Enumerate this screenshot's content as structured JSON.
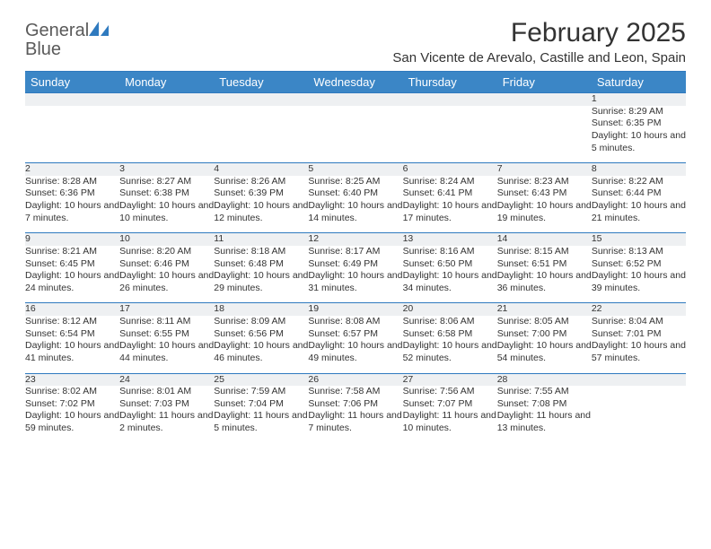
{
  "logo": {
    "text_general": "General",
    "text_blue": "Blue"
  },
  "title": "February 2025",
  "location": "San Vicente de Arevalo, Castille and Leon, Spain",
  "colors": {
    "header_bg": "#3b86c6",
    "border": "#2f7abf",
    "daynum_bg": "#eef0f2",
    "text": "#333333"
  },
  "day_headers": [
    "Sunday",
    "Monday",
    "Tuesday",
    "Wednesday",
    "Thursday",
    "Friday",
    "Saturday"
  ],
  "weeks": [
    [
      null,
      null,
      null,
      null,
      null,
      null,
      {
        "n": "1",
        "sunrise": "8:29 AM",
        "sunset": "6:35 PM",
        "daylight": "10 hours and 5 minutes."
      }
    ],
    [
      {
        "n": "2",
        "sunrise": "8:28 AM",
        "sunset": "6:36 PM",
        "daylight": "10 hours and 7 minutes."
      },
      {
        "n": "3",
        "sunrise": "8:27 AM",
        "sunset": "6:38 PM",
        "daylight": "10 hours and 10 minutes."
      },
      {
        "n": "4",
        "sunrise": "8:26 AM",
        "sunset": "6:39 PM",
        "daylight": "10 hours and 12 minutes."
      },
      {
        "n": "5",
        "sunrise": "8:25 AM",
        "sunset": "6:40 PM",
        "daylight": "10 hours and 14 minutes."
      },
      {
        "n": "6",
        "sunrise": "8:24 AM",
        "sunset": "6:41 PM",
        "daylight": "10 hours and 17 minutes."
      },
      {
        "n": "7",
        "sunrise": "8:23 AM",
        "sunset": "6:43 PM",
        "daylight": "10 hours and 19 minutes."
      },
      {
        "n": "8",
        "sunrise": "8:22 AM",
        "sunset": "6:44 PM",
        "daylight": "10 hours and 21 minutes."
      }
    ],
    [
      {
        "n": "9",
        "sunrise": "8:21 AM",
        "sunset": "6:45 PM",
        "daylight": "10 hours and 24 minutes."
      },
      {
        "n": "10",
        "sunrise": "8:20 AM",
        "sunset": "6:46 PM",
        "daylight": "10 hours and 26 minutes."
      },
      {
        "n": "11",
        "sunrise": "8:18 AM",
        "sunset": "6:48 PM",
        "daylight": "10 hours and 29 minutes."
      },
      {
        "n": "12",
        "sunrise": "8:17 AM",
        "sunset": "6:49 PM",
        "daylight": "10 hours and 31 minutes."
      },
      {
        "n": "13",
        "sunrise": "8:16 AM",
        "sunset": "6:50 PM",
        "daylight": "10 hours and 34 minutes."
      },
      {
        "n": "14",
        "sunrise": "8:15 AM",
        "sunset": "6:51 PM",
        "daylight": "10 hours and 36 minutes."
      },
      {
        "n": "15",
        "sunrise": "8:13 AM",
        "sunset": "6:52 PM",
        "daylight": "10 hours and 39 minutes."
      }
    ],
    [
      {
        "n": "16",
        "sunrise": "8:12 AM",
        "sunset": "6:54 PM",
        "daylight": "10 hours and 41 minutes."
      },
      {
        "n": "17",
        "sunrise": "8:11 AM",
        "sunset": "6:55 PM",
        "daylight": "10 hours and 44 minutes."
      },
      {
        "n": "18",
        "sunrise": "8:09 AM",
        "sunset": "6:56 PM",
        "daylight": "10 hours and 46 minutes."
      },
      {
        "n": "19",
        "sunrise": "8:08 AM",
        "sunset": "6:57 PM",
        "daylight": "10 hours and 49 minutes."
      },
      {
        "n": "20",
        "sunrise": "8:06 AM",
        "sunset": "6:58 PM",
        "daylight": "10 hours and 52 minutes."
      },
      {
        "n": "21",
        "sunrise": "8:05 AM",
        "sunset": "7:00 PM",
        "daylight": "10 hours and 54 minutes."
      },
      {
        "n": "22",
        "sunrise": "8:04 AM",
        "sunset": "7:01 PM",
        "daylight": "10 hours and 57 minutes."
      }
    ],
    [
      {
        "n": "23",
        "sunrise": "8:02 AM",
        "sunset": "7:02 PM",
        "daylight": "10 hours and 59 minutes."
      },
      {
        "n": "24",
        "sunrise": "8:01 AM",
        "sunset": "7:03 PM",
        "daylight": "11 hours and 2 minutes."
      },
      {
        "n": "25",
        "sunrise": "7:59 AM",
        "sunset": "7:04 PM",
        "daylight": "11 hours and 5 minutes."
      },
      {
        "n": "26",
        "sunrise": "7:58 AM",
        "sunset": "7:06 PM",
        "daylight": "11 hours and 7 minutes."
      },
      {
        "n": "27",
        "sunrise": "7:56 AM",
        "sunset": "7:07 PM",
        "daylight": "11 hours and 10 minutes."
      },
      {
        "n": "28",
        "sunrise": "7:55 AM",
        "sunset": "7:08 PM",
        "daylight": "11 hours and 13 minutes."
      },
      null
    ]
  ],
  "labels": {
    "sunrise": "Sunrise:",
    "sunset": "Sunset:",
    "daylight": "Daylight:"
  }
}
